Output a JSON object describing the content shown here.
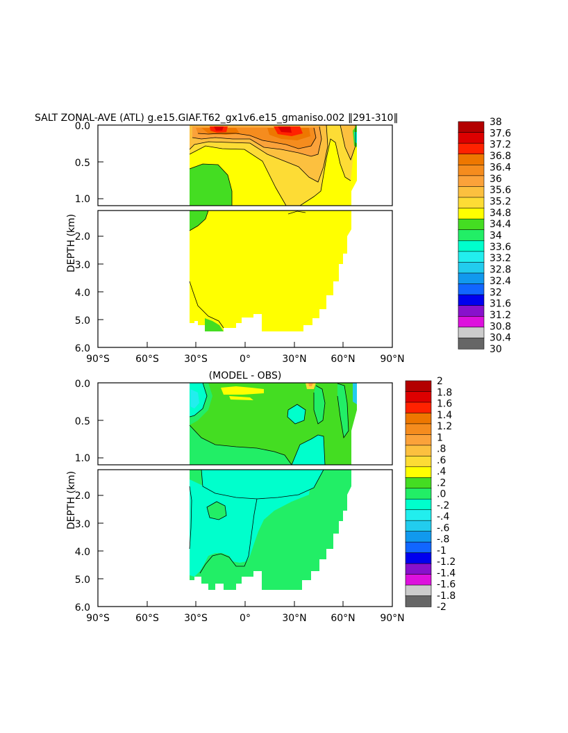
{
  "chart_data": [
    {
      "type": "heatmap",
      "title": "SALT ZONAL-AVE (ATL) g.e15.GIAF.T62_gx1v6.e15_gmaniso.002 ‖291-310‖",
      "ylabel": "DEPTH (km)",
      "xlabel": "",
      "x_ticks": [
        "90°S",
        "60°S",
        "30°S",
        "0°",
        "30°N",
        "60°N",
        "90°N"
      ],
      "y_ticks_upper": [
        "0.0",
        "0.5",
        "1.0"
      ],
      "y_ticks_lower": [
        "2.0",
        "3.0",
        "4.0",
        "5.0",
        "6.0"
      ],
      "xlim": [
        -90,
        90
      ],
      "ylim": [
        0,
        6
      ],
      "colorbar": {
        "labels": [
          "38",
          "37.6",
          "37.2",
          "36.8",
          "36.4",
          "36",
          "35.6",
          "35.2",
          "34.8",
          "34.4",
          "34",
          "33.6",
          "33.2",
          "32.8",
          "32.4",
          "32",
          "31.6",
          "31.2",
          "30.8",
          "30.4",
          "30"
        ],
        "colors": [
          "#b30000",
          "#dd0000",
          "#ff2200",
          "#ee7700",
          "#f58c1e",
          "#fba23a",
          "#fcc03f",
          "#fddc35",
          "#ffff00",
          "#44dd22",
          "#22ee66",
          "#00ffcc",
          "#22eeee",
          "#22ccee",
          "#1199ee",
          "#1166ff",
          "#0000ee",
          "#8811cc",
          "#dd11dd",
          "#cccccc",
          "#666666"
        ]
      }
    },
    {
      "type": "heatmap",
      "title": "(MODEL - OBS)",
      "ylabel": "DEPTH (km)",
      "xlabel": "",
      "x_ticks": [
        "90°S",
        "60°S",
        "30°S",
        "0°",
        "30°N",
        "60°N",
        "90°N"
      ],
      "y_ticks_upper": [
        "0.0",
        "0.5",
        "1.0"
      ],
      "y_ticks_lower": [
        "2.0",
        "3.0",
        "4.0",
        "5.0",
        "6.0"
      ],
      "xlim": [
        -90,
        90
      ],
      "ylim": [
        0,
        6
      ],
      "colorbar": {
        "labels": [
          "2",
          "1.8",
          "1.6",
          "1.4",
          "1.2",
          "1",
          ".8",
          ".6",
          ".4",
          ".2",
          ".0",
          "-.2",
          "-.4",
          "-.6",
          "-.8",
          "-1",
          "-1.2",
          "-1.4",
          "-1.6",
          "-1.8",
          "-2"
        ],
        "colors": [
          "#b30000",
          "#dd0000",
          "#ff2200",
          "#ee7700",
          "#f58c1e",
          "#fba23a",
          "#fcc03f",
          "#fddc35",
          "#ffff00",
          "#44dd22",
          "#22ee66",
          "#00ffcc",
          "#22eeee",
          "#22ccee",
          "#1199ee",
          "#1166ff",
          "#0000ee",
          "#8811cc",
          "#dd11dd",
          "#cccccc",
          "#666666"
        ]
      }
    }
  ]
}
